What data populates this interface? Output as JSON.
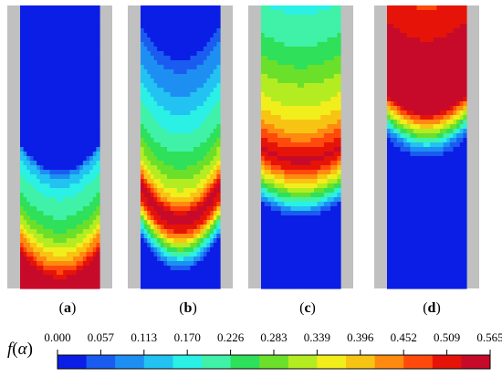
{
  "chart_data": {
    "type": "heatmap",
    "variable_label": "f(α)",
    "variable_symbol": "f",
    "variable_arg": "α",
    "colorbar_ticks": [
      "0.000",
      "0.057",
      "0.113",
      "0.170",
      "0.226",
      "0.283",
      "0.339",
      "0.396",
      "0.452",
      "0.509",
      "0.565"
    ],
    "vmin": 0.0,
    "vmax": 0.565,
    "colors": [
      "#0a1ee6",
      "#1a5cf0",
      "#1e8ff2",
      "#22c2f2",
      "#2af0e6",
      "#40f2a8",
      "#2ee05a",
      "#6be02a",
      "#b4ec22",
      "#f2ee1c",
      "#f8c414",
      "#ff8a10",
      "#ff4a0c",
      "#e61408",
      "#c80a2a"
    ],
    "panels": [
      {
        "label": "a",
        "profile": [
          {
            "depth": 0.0,
            "value": 0.0
          },
          {
            "depth": 0.58,
            "value": 0.0
          },
          {
            "depth": 0.6,
            "value": 0.1
          },
          {
            "depth": 0.63,
            "value": 0.14
          },
          {
            "depth": 0.7,
            "value": 0.2
          },
          {
            "depth": 0.78,
            "value": 0.24
          },
          {
            "depth": 0.85,
            "value": 0.32
          },
          {
            "depth": 0.92,
            "value": 0.44
          },
          {
            "depth": 0.97,
            "value": 0.54
          },
          {
            "depth": 1.0,
            "value": 0.565
          }
        ],
        "curvature": 0.1
      },
      {
        "label": "b",
        "profile": [
          {
            "depth": 0.0,
            "value": 0.0
          },
          {
            "depth": 0.18,
            "value": 0.0
          },
          {
            "depth": 0.2,
            "value": 0.06
          },
          {
            "depth": 0.3,
            "value": 0.1
          },
          {
            "depth": 0.42,
            "value": 0.17
          },
          {
            "depth": 0.55,
            "value": 0.24
          },
          {
            "depth": 0.65,
            "value": 0.33
          },
          {
            "depth": 0.7,
            "value": 0.42
          },
          {
            "depth": 0.75,
            "value": 0.56
          },
          {
            "depth": 0.8,
            "value": 0.5
          },
          {
            "depth": 0.83,
            "value": 0.4
          },
          {
            "depth": 0.86,
            "value": 0.28
          },
          {
            "depth": 0.9,
            "value": 0.14
          },
          {
            "depth": 0.93,
            "value": 0.05
          },
          {
            "depth": 0.95,
            "value": 0.0
          },
          {
            "depth": 1.0,
            "value": 0.0
          }
        ],
        "curvature": 0.12
      },
      {
        "label": "c",
        "profile": [
          {
            "depth": 0.0,
            "value": 0.18
          },
          {
            "depth": 0.08,
            "value": 0.2
          },
          {
            "depth": 0.18,
            "value": 0.24
          },
          {
            "depth": 0.28,
            "value": 0.3
          },
          {
            "depth": 0.36,
            "value": 0.34
          },
          {
            "depth": 0.44,
            "value": 0.4
          },
          {
            "depth": 0.5,
            "value": 0.48
          },
          {
            "depth": 0.55,
            "value": 0.54
          },
          {
            "depth": 0.58,
            "value": 0.5
          },
          {
            "depth": 0.62,
            "value": 0.4
          },
          {
            "depth": 0.66,
            "value": 0.3
          },
          {
            "depth": 0.7,
            "value": 0.18
          },
          {
            "depth": 0.73,
            "value": 0.08
          },
          {
            "depth": 0.76,
            "value": 0.0
          },
          {
            "depth": 1.0,
            "value": 0.0
          }
        ],
        "curvature": 0.05
      },
      {
        "label": "d",
        "profile": [
          {
            "depth": 0.0,
            "value": 0.48
          },
          {
            "depth": 0.05,
            "value": 0.52
          },
          {
            "depth": 0.15,
            "value": 0.53
          },
          {
            "depth": 0.3,
            "value": 0.54
          },
          {
            "depth": 0.38,
            "value": 0.55
          },
          {
            "depth": 0.41,
            "value": 0.44
          },
          {
            "depth": 0.44,
            "value": 0.34
          },
          {
            "depth": 0.47,
            "value": 0.24
          },
          {
            "depth": 0.5,
            "value": 0.12
          },
          {
            "depth": 0.53,
            "value": 0.05
          },
          {
            "depth": 0.56,
            "value": 0.0
          },
          {
            "depth": 1.0,
            "value": 0.0
          }
        ],
        "curvature": 0.07
      }
    ]
  }
}
